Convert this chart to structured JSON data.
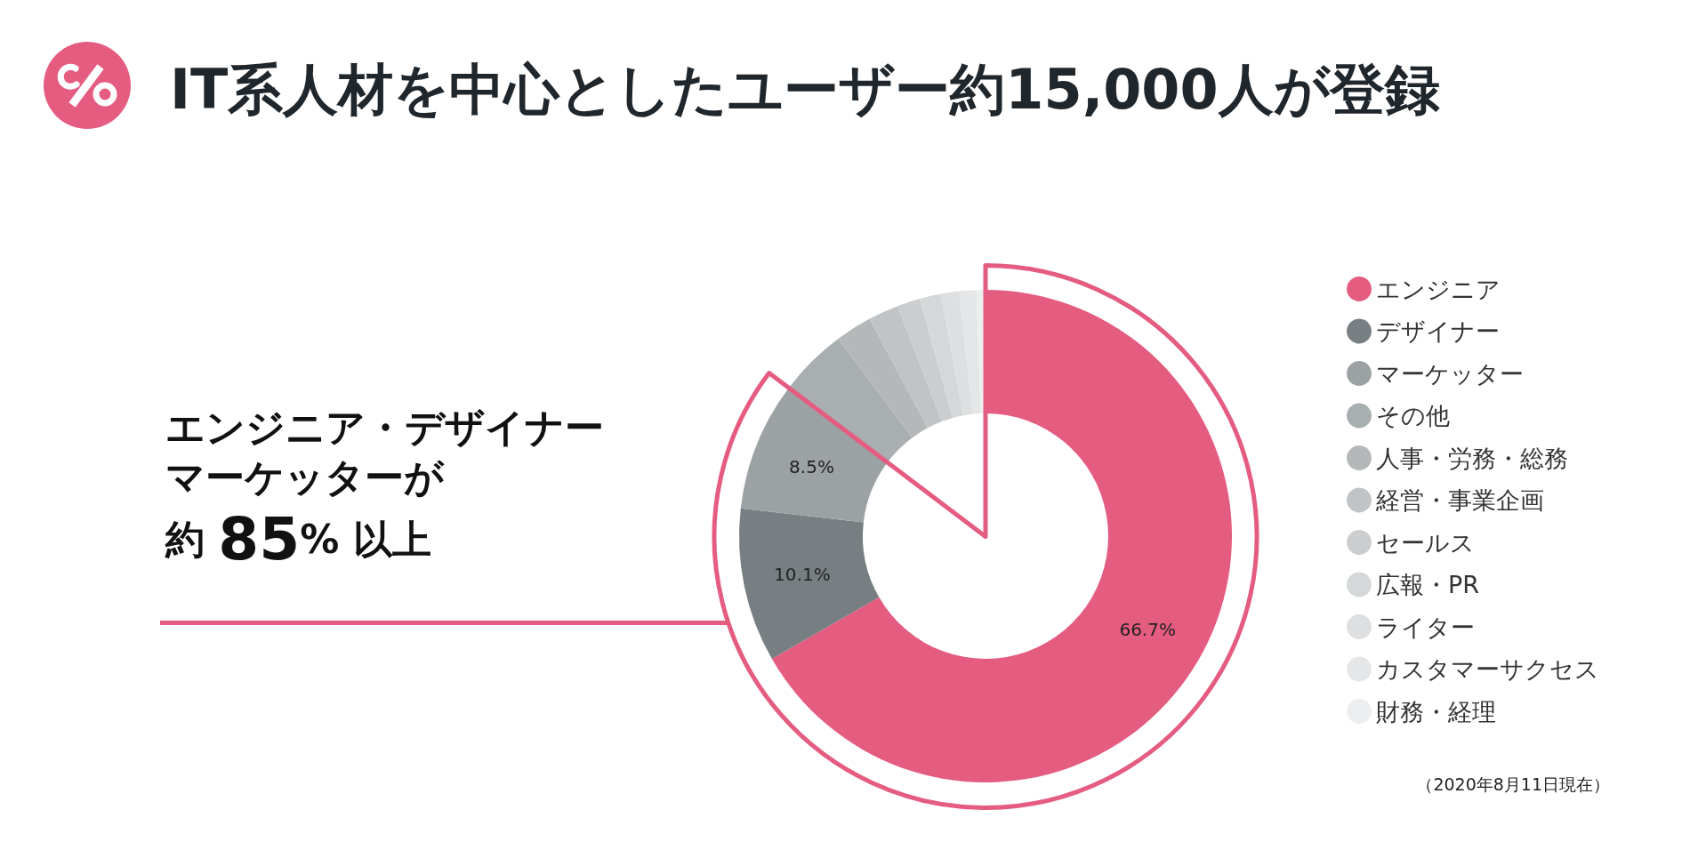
{
  "chart_data": {
    "type": "donut",
    "title": "IT系人材を中心としたユーザー約15,000人が登録",
    "annotations": [
      "エンジニア・デザイナーマーケッターが",
      "約 85% 以上",
      "（2020年8月11日現在）"
    ],
    "categories": [
      "エンジニア",
      "デザイナー",
      "マーケッター",
      "その他",
      "人事・労務・総務",
      "経営・事業企画",
      "セールス",
      "広報・PR",
      "ライター",
      "カスタマーサクセス",
      "財務・経理"
    ],
    "values": [
      66.7,
      10.1,
      8.5,
      4.5,
      2.4,
      2.0,
      1.5,
      1.4,
      1.2,
      1.1,
      0.6
    ],
    "colors": [
      "#e55c81",
      "#787f83",
      "#9ca2a4",
      "#a9aeb0",
      "#b4b8b9",
      "#c1c4c6",
      "#cbcdcf",
      "#d5d8d9",
      "#dddfe1",
      "#e4e6e8",
      "#eceef0"
    ],
    "value_labels": [
      "66.7%",
      "10.1%",
      "8.5%",
      null,
      null,
      null,
      null,
      null,
      null,
      null,
      null
    ],
    "legend": "right"
  }
}
